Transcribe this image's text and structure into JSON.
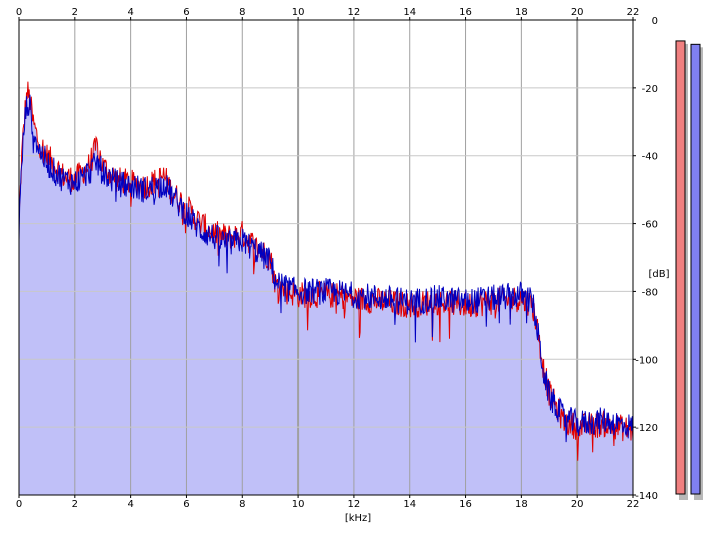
{
  "chart_data": {
    "type": "area",
    "xlabel": "[kHz]",
    "ylabel": "[dB]",
    "xlim": [
      0,
      22
    ],
    "ylim": [
      -140,
      0
    ],
    "x_ticks": [
      0,
      2,
      4,
      6,
      8,
      10,
      12,
      14,
      16,
      18,
      20,
      22
    ],
    "y_ticks": [
      0,
      -20,
      -40,
      -60,
      -80,
      -100,
      -120,
      -140
    ],
    "x_tick_labels": [
      "0",
      "2",
      "4",
      "6",
      "8",
      "10",
      "12",
      "14",
      "16",
      "18",
      "20",
      "22"
    ],
    "y_tick_labels": [
      "0",
      "-20",
      "-40",
      "-60",
      "-80",
      "-100",
      "-120",
      "-140"
    ],
    "grid": true,
    "fill_color": "#c0c0f8",
    "series": [
      {
        "color": "#e00000",
        "x": [
          0,
          0.1,
          0.2,
          0.3,
          0.4,
          0.5,
          0.7,
          1.0,
          1.3,
          1.6,
          2.0,
          2.5,
          2.8,
          3.0,
          3.5,
          4.0,
          4.5,
          5.0,
          5.2,
          5.5,
          6.0,
          6.5,
          7.0,
          7.5,
          8.0,
          8.5,
          9.0,
          9.2,
          9.6,
          10.0,
          11.0,
          12.0,
          13.0,
          14.0,
          15.0,
          16.0,
          17.0,
          18.0,
          18.4,
          18.6,
          18.8,
          19.0,
          19.5,
          20.0,
          21.0,
          22.0
        ],
        "y": [
          -60,
          -40,
          -28,
          -21,
          -24,
          -30,
          -36,
          -40,
          -43,
          -46,
          -47,
          -43,
          -37,
          -43,
          -47,
          -48,
          -49,
          -47,
          -46,
          -51,
          -55,
          -60,
          -63,
          -64,
          -63,
          -67,
          -70,
          -78,
          -80,
          -81,
          -81,
          -82,
          -83,
          -84,
          -83,
          -84,
          -83,
          -82,
          -84,
          -92,
          -103,
          -110,
          -118,
          -120,
          -119,
          -121
        ]
      },
      {
        "color": "#0000c0",
        "x": [
          0,
          0.1,
          0.2,
          0.3,
          0.4,
          0.5,
          0.7,
          1.0,
          1.3,
          1.6,
          2.0,
          2.5,
          2.8,
          3.0,
          3.5,
          4.0,
          4.5,
          5.0,
          5.2,
          5.5,
          6.0,
          6.5,
          7.0,
          7.5,
          8.0,
          8.5,
          9.0,
          9.2,
          9.6,
          10.0,
          11.0,
          12.0,
          13.0,
          14.0,
          15.0,
          16.0,
          17.0,
          18.0,
          18.4,
          18.6,
          18.8,
          19.0,
          19.5,
          20.0,
          21.0,
          22.0
        ],
        "y": [
          -62,
          -42,
          -30,
          -24,
          -26,
          -32,
          -38,
          -42,
          -45,
          -47,
          -48,
          -45,
          -42,
          -45,
          -48,
          -49,
          -50,
          -49,
          -48,
          -52,
          -57,
          -62,
          -64,
          -66,
          -65,
          -68,
          -71,
          -77,
          -79,
          -80,
          -80,
          -81,
          -82,
          -83,
          -82,
          -83,
          -82,
          -81,
          -83,
          -93,
          -104,
          -111,
          -117,
          -119,
          -118,
          -120
        ]
      }
    ],
    "level_meters": [
      {
        "color": "#f08080",
        "level_db": -10
      },
      {
        "color": "#8080f0",
        "level_db": -11
      }
    ]
  }
}
